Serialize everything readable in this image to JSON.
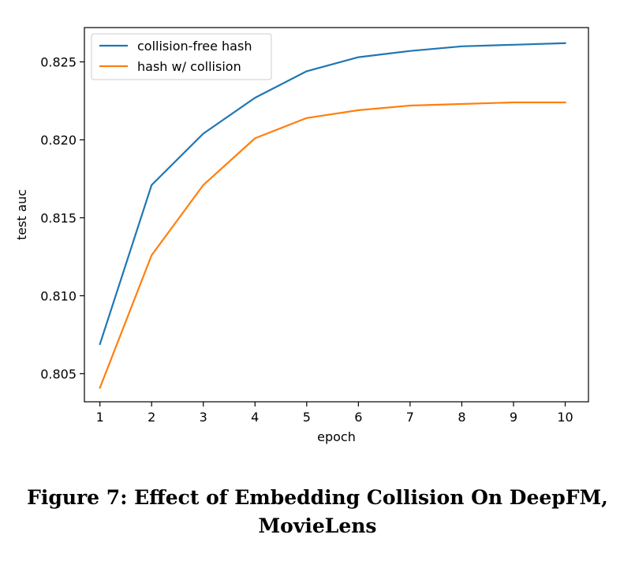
{
  "chart_data": {
    "type": "line",
    "x": [
      1,
      2,
      3,
      4,
      5,
      6,
      7,
      8,
      9,
      10
    ],
    "series": [
      {
        "name": "collision-free hash",
        "color": "#1f77b4",
        "values": [
          0.8069,
          0.8171,
          0.8204,
          0.8227,
          0.8244,
          0.8253,
          0.8257,
          0.826,
          0.8261,
          0.8262
        ]
      },
      {
        "name": "hash w/ collision",
        "color": "#ff7f0e",
        "values": [
          0.8041,
          0.8126,
          0.8171,
          0.8201,
          0.8214,
          0.8219,
          0.8222,
          0.8223,
          0.8224,
          0.8224
        ]
      }
    ],
    "xlabel": "epoch",
    "ylabel": "test auc",
    "xlim": [
      0.7,
      10.45
    ],
    "ylim": [
      0.8032,
      0.8272
    ],
    "xticks": [
      1,
      2,
      3,
      4,
      5,
      6,
      7,
      8,
      9,
      10
    ],
    "xtick_labels": [
      "1",
      "2",
      "3",
      "4",
      "5",
      "6",
      "7",
      "8",
      "9",
      "10"
    ],
    "yticks": [
      0.805,
      0.81,
      0.815,
      0.82,
      0.825
    ],
    "ytick_labels": [
      "0.805",
      "0.810",
      "0.815",
      "0.820",
      "0.825"
    ],
    "grid": false,
    "legend_position": "top-left"
  },
  "caption": {
    "line1": "Figure 7: Effect of Embedding Collision On DeepFM,",
    "line2": "MovieLens"
  }
}
